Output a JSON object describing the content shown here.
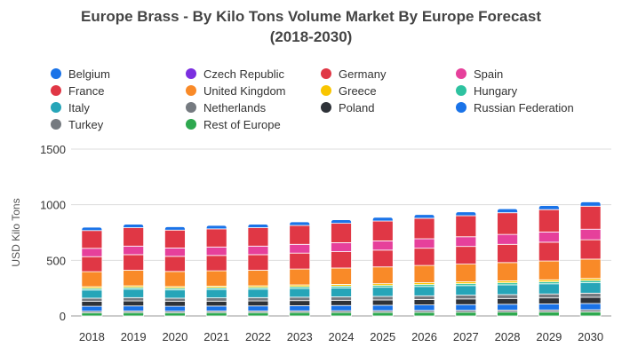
{
  "chart_data": {
    "type": "bar",
    "stacked": true,
    "title_lines": [
      "Europe Brass - By Kilo Tons Volume Market By Europe Forecast",
      "(2018-2030)"
    ],
    "xlabel": "",
    "ylabel": "USD Kilo Tons",
    "ylim": [
      0,
      1500
    ],
    "yticks": [
      0,
      500,
      1000,
      1500
    ],
    "grid": true,
    "legend_position": "top",
    "categories": [
      "2018",
      "2019",
      "2020",
      "2021",
      "2022",
      "2023",
      "2024",
      "2025",
      "2026",
      "2027",
      "2028",
      "2029",
      "2030"
    ],
    "series": [
      {
        "name": "Rest of Europe",
        "color": "#2ea84f",
        "values": [
          29,
          30,
          29,
          30,
          30,
          31,
          31,
          32,
          33,
          34,
          35,
          36,
          37
        ]
      },
      {
        "name": "Turkey",
        "color": "#757a80",
        "values": [
          14,
          15,
          14,
          15,
          15,
          15,
          16,
          16,
          17,
          17,
          18,
          18,
          19
        ]
      },
      {
        "name": "Russian Federation",
        "color": "#1a73e8",
        "values": [
          44,
          45,
          44,
          44,
          45,
          46,
          47,
          48,
          49,
          51,
          52,
          54,
          56
        ]
      },
      {
        "name": "Poland",
        "color": "#2e3238",
        "values": [
          44,
          45,
          44,
          44,
          45,
          46,
          47,
          48,
          49,
          51,
          52,
          54,
          56
        ]
      },
      {
        "name": "Netherlands",
        "color": "#757a80",
        "values": [
          29,
          30,
          29,
          30,
          30,
          31,
          31,
          32,
          33,
          34,
          35,
          36,
          37
        ]
      },
      {
        "name": "Italy",
        "color": "#26a5b8",
        "values": [
          73,
          76,
          74,
          75,
          76,
          78,
          80,
          82,
          84,
          86,
          88,
          91,
          94
        ]
      },
      {
        "name": "Hungary",
        "color": "#2ec2a0",
        "values": [
          15,
          15,
          15,
          15,
          15,
          16,
          16,
          16,
          17,
          17,
          18,
          18,
          19
        ]
      },
      {
        "name": "Greece",
        "color": "#f9c500",
        "values": [
          15,
          15,
          15,
          15,
          15,
          16,
          16,
          16,
          17,
          17,
          18,
          18,
          19
        ]
      },
      {
        "name": "United Kingdom",
        "color": "#f98a28",
        "values": [
          135,
          140,
          136,
          138,
          140,
          143,
          147,
          151,
          155,
          159,
          164,
          169,
          174
        ]
      },
      {
        "name": "France",
        "color": "#e03745",
        "values": [
          135,
          140,
          136,
          138,
          140,
          143,
          147,
          151,
          155,
          159,
          164,
          169,
          174
        ]
      },
      {
        "name": "Spain",
        "color": "#e6409b",
        "values": [
          75,
          77,
          75,
          76,
          77,
          79,
          81,
          83,
          85,
          87,
          89,
          92,
          95
        ]
      },
      {
        "name": "Germany",
        "color": "#e03745",
        "values": [
          160,
          166,
          161,
          163,
          166,
          170,
          174,
          179,
          184,
          189,
          195,
          201,
          207
        ]
      },
      {
        "name": "Czech Republic",
        "color": "#7b2fe0",
        "values": [
          0,
          0,
          0,
          0,
          0,
          0,
          0,
          0,
          0,
          0,
          0,
          0,
          0
        ]
      },
      {
        "name": "Belgium",
        "color": "#1a73e8",
        "values": [
          30,
          31,
          30,
          31,
          31,
          32,
          32,
          33,
          34,
          35,
          36,
          37,
          38
        ]
      }
    ],
    "legend_order": [
      "Belgium",
      "Czech Republic",
      "Germany",
      "Spain",
      "France",
      "United Kingdom",
      "Greece",
      "Hungary",
      "Italy",
      "Netherlands",
      "Poland",
      "Russian Federation",
      "Turkey",
      "Rest of Europe"
    ]
  }
}
